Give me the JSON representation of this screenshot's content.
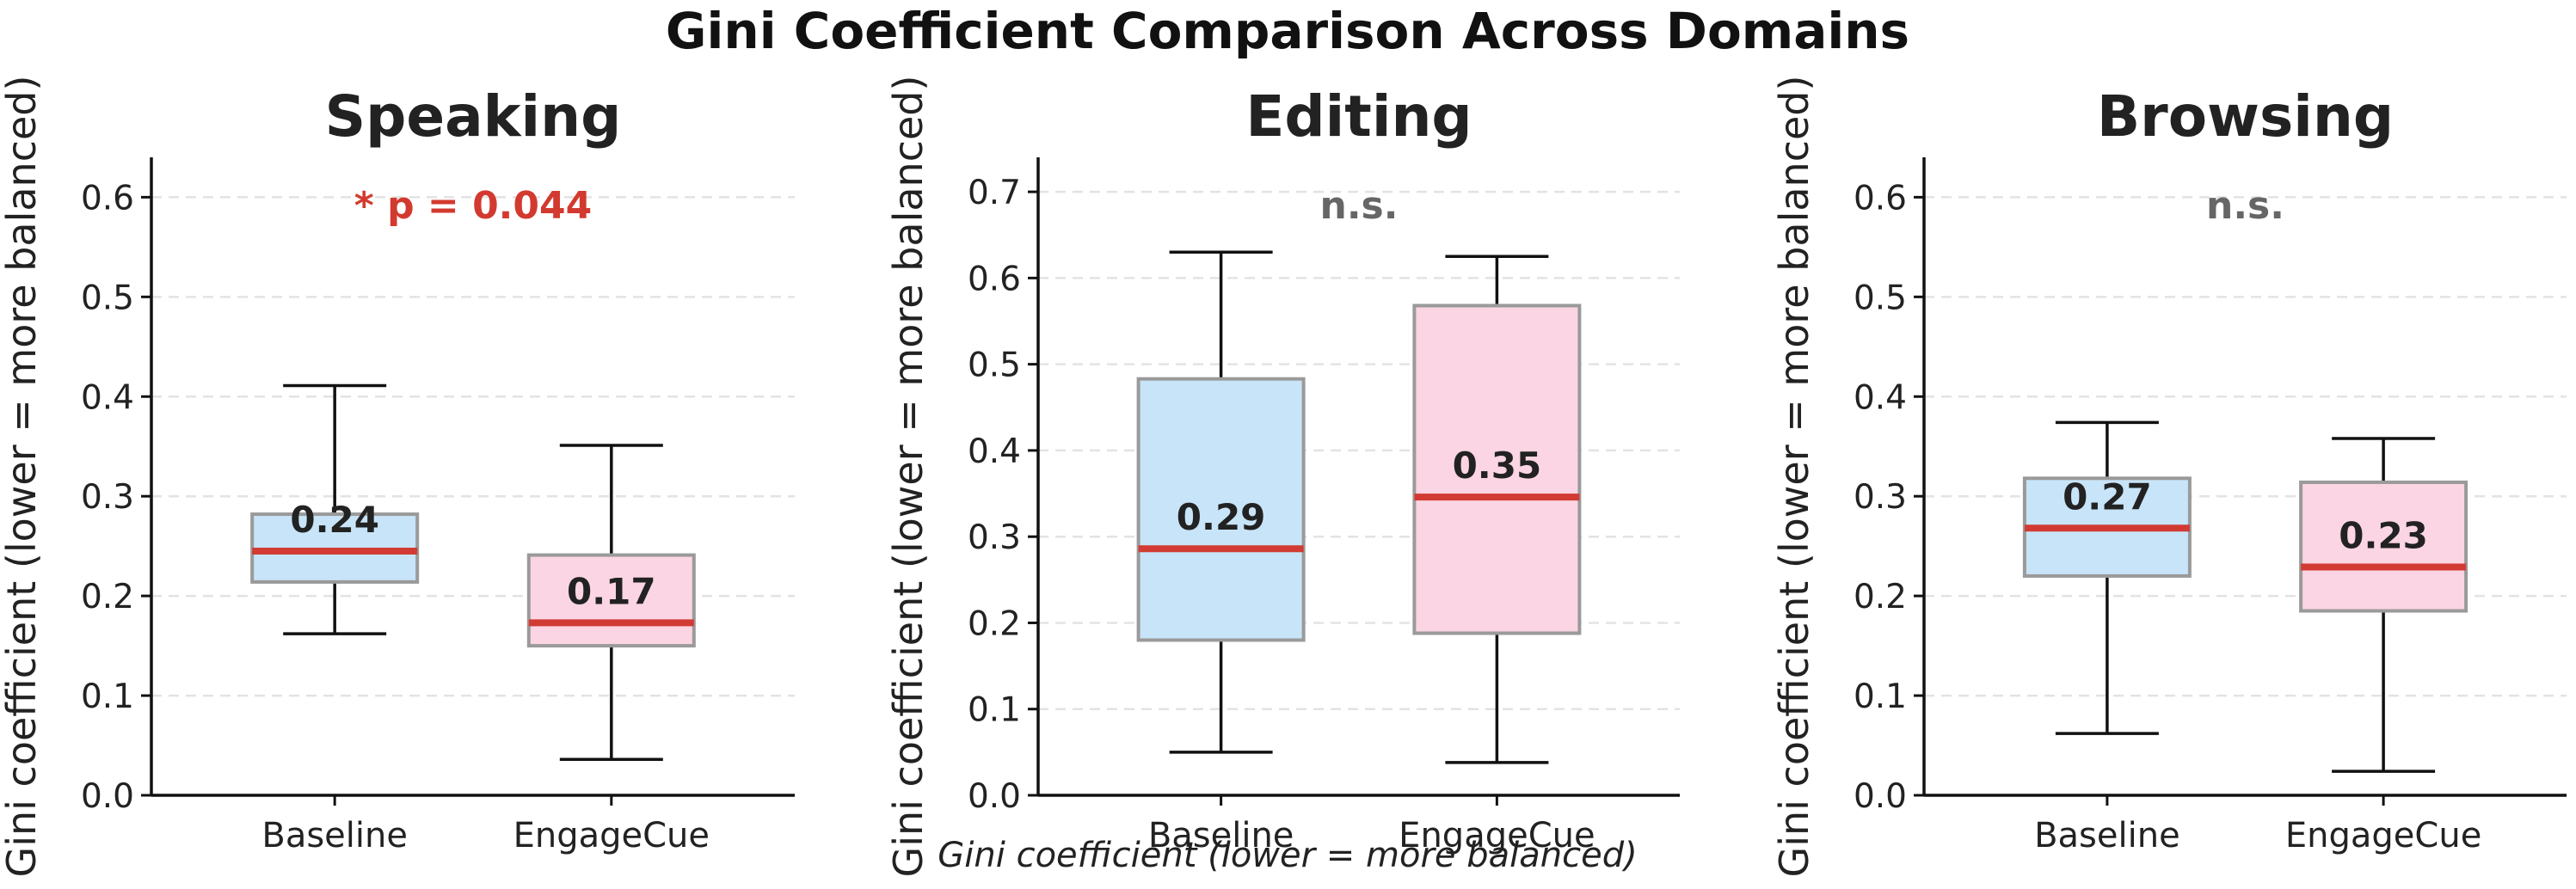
{
  "title": "Gini Coefficient Comparison Across Domains",
  "footer": "Gini coefficient (lower = more balanced)",
  "colors": {
    "baseline_fill": "#c8e4f8",
    "engagecue_fill": "#fbd5e3",
    "box_edge": "#9a9a9a",
    "median": "#d13b34",
    "significant": "#d33a2f",
    "not_significant": "#666666",
    "grid": "#e3e3e3",
    "text": "#222222"
  },
  "chart_data": [
    {
      "type": "box",
      "title": "Speaking",
      "ylabel": "Gini coefficient (lower = more balanced)",
      "ylim": [
        0,
        0.64
      ],
      "yticks": [
        "0.0",
        "0.1",
        "0.2",
        "0.3",
        "0.4",
        "0.5",
        "0.6"
      ],
      "categories": [
        "Baseline",
        "EngageCue"
      ],
      "annotation": "* p = 0.044",
      "significant": true,
      "boxes": [
        {
          "name": "Baseline",
          "whisker_low": 0.162,
          "q1": 0.214,
          "median": 0.245,
          "q3": 0.282,
          "whisker_high": 0.411,
          "label": "0.24"
        },
        {
          "name": "EngageCue",
          "whisker_low": 0.036,
          "q1": 0.15,
          "median": 0.173,
          "q3": 0.241,
          "whisker_high": 0.351,
          "label": "0.17"
        }
      ]
    },
    {
      "type": "box",
      "title": "Editing",
      "ylabel": "Gini coefficient (lower = more balanced)",
      "ylim": [
        0,
        0.74
      ],
      "yticks": [
        "0.0",
        "0.1",
        "0.2",
        "0.3",
        "0.4",
        "0.5",
        "0.6",
        "0.7"
      ],
      "categories": [
        "Baseline",
        "EngageCue"
      ],
      "annotation": "n.s.",
      "significant": false,
      "boxes": [
        {
          "name": "Baseline",
          "whisker_low": 0.05,
          "q1": 0.18,
          "median": 0.286,
          "q3": 0.483,
          "whisker_high": 0.63,
          "label": "0.29"
        },
        {
          "name": "EngageCue",
          "whisker_low": 0.038,
          "q1": 0.188,
          "median": 0.346,
          "q3": 0.568,
          "whisker_high": 0.625,
          "label": "0.35"
        }
      ]
    },
    {
      "type": "box",
      "title": "Browsing",
      "ylabel": "Gini coefficient (lower = more balanced)",
      "ylim": [
        0,
        0.64
      ],
      "yticks": [
        "0.0",
        "0.1",
        "0.2",
        "0.3",
        "0.4",
        "0.5",
        "0.6"
      ],
      "categories": [
        "Baseline",
        "EngageCue"
      ],
      "annotation": "n.s.",
      "significant": false,
      "boxes": [
        {
          "name": "Baseline",
          "whisker_low": 0.062,
          "q1": 0.22,
          "median": 0.268,
          "q3": 0.318,
          "whisker_high": 0.374,
          "label": "0.27"
        },
        {
          "name": "EngageCue",
          "whisker_low": 0.024,
          "q1": 0.185,
          "median": 0.229,
          "q3": 0.314,
          "whisker_high": 0.358,
          "label": "0.23"
        }
      ]
    }
  ]
}
